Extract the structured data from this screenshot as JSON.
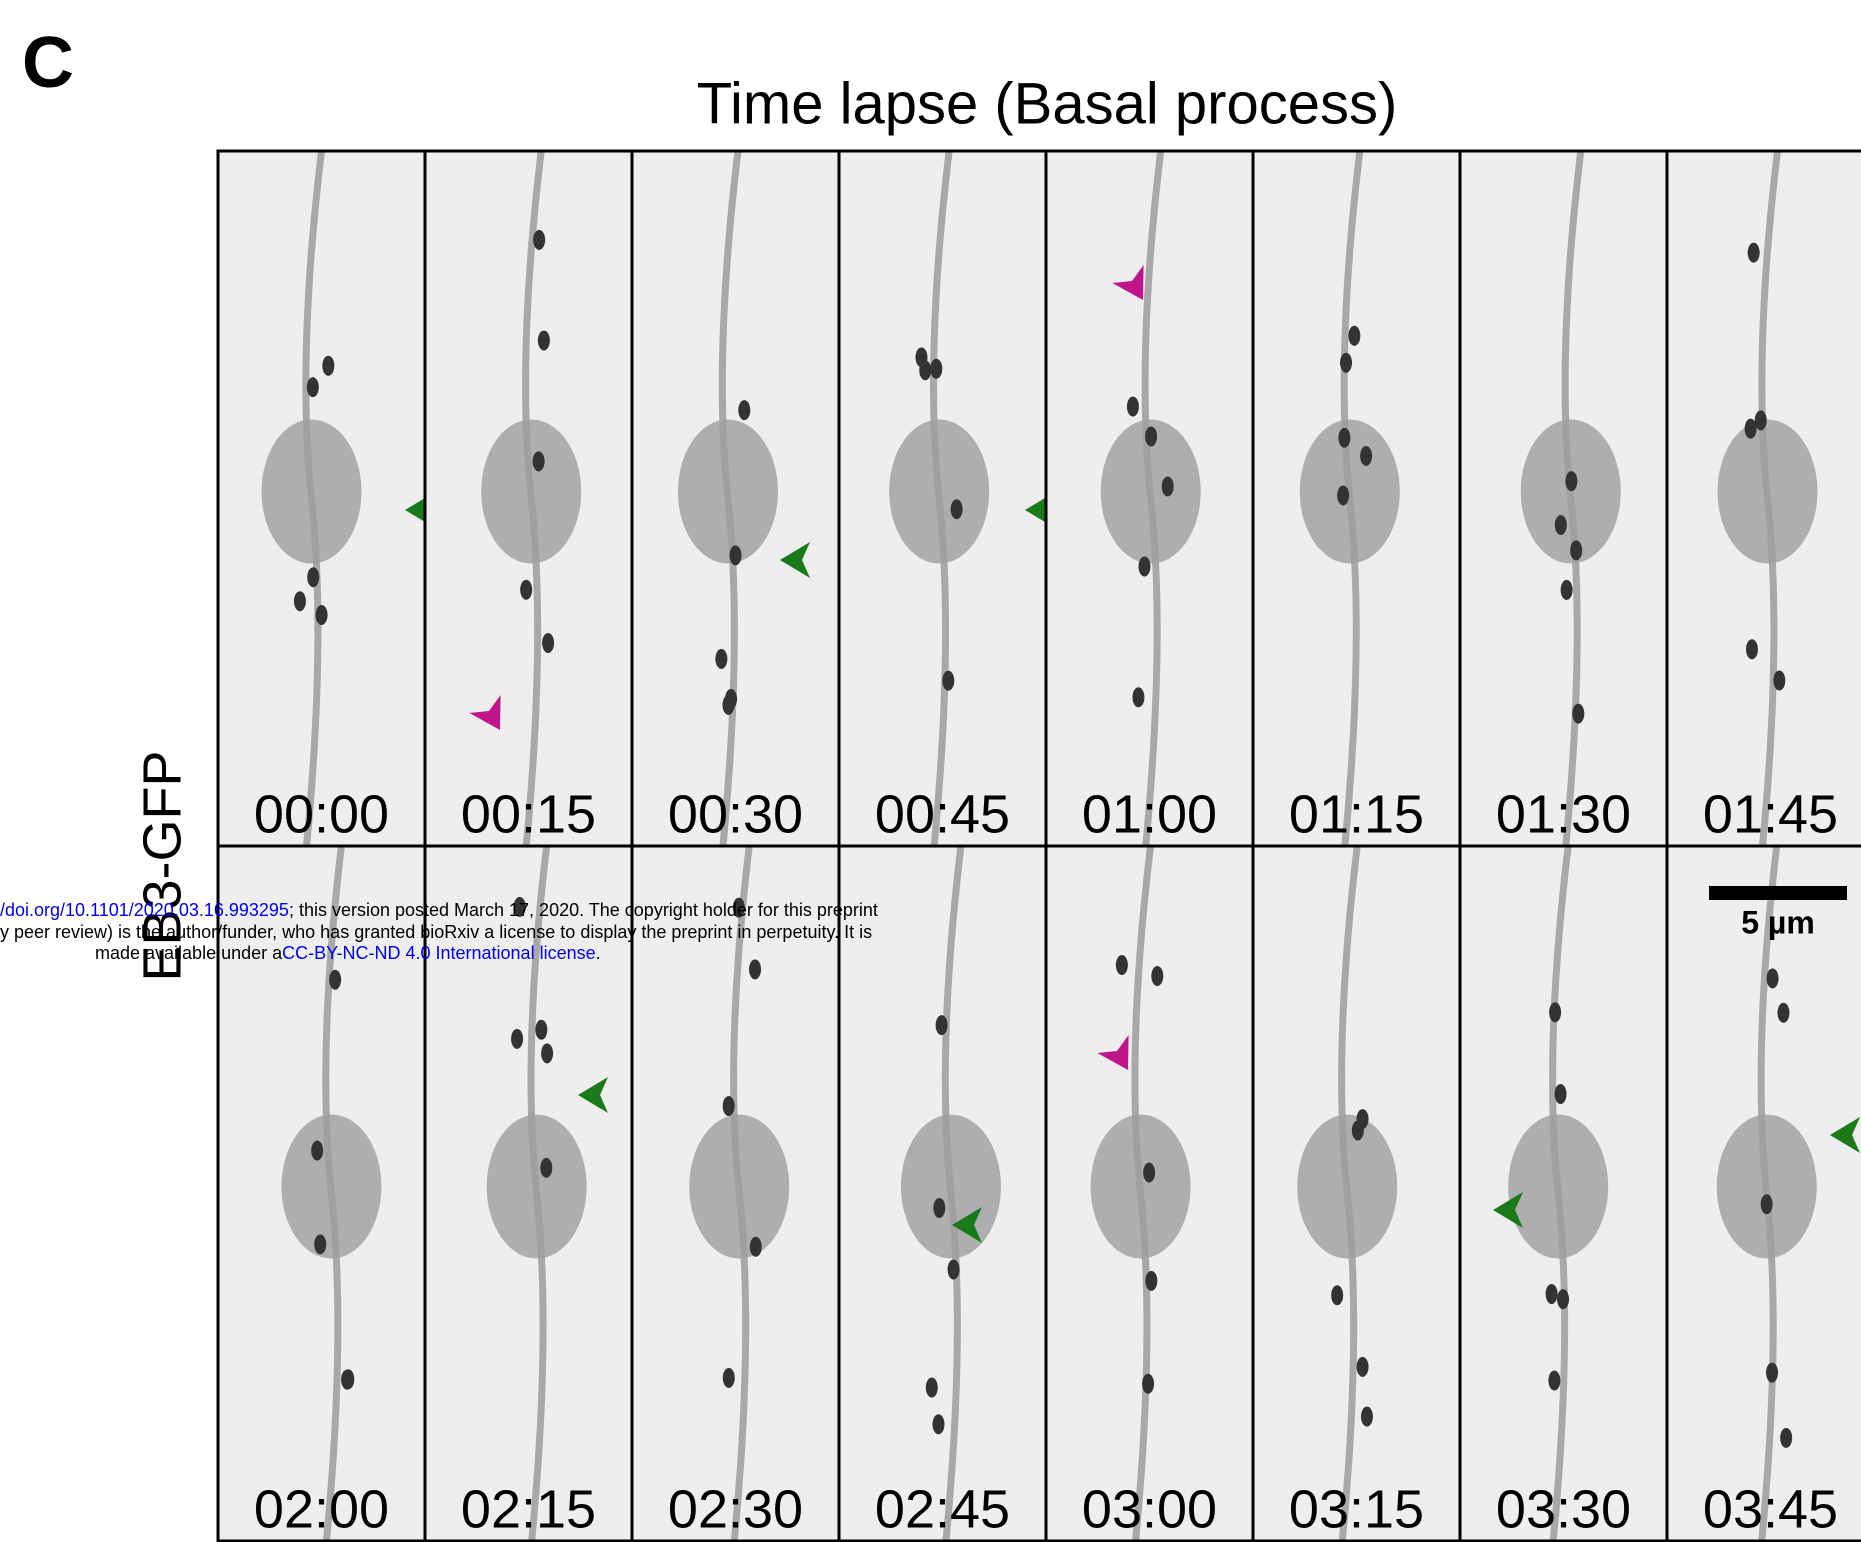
{
  "panel_label": "C",
  "title": "Time lapse (Basal process)",
  "row_label": "EB3-GFP",
  "timestamps": [
    "00:00",
    "00:15",
    "00:30",
    "00:45",
    "01:00",
    "01:15",
    "01:30",
    "01:45",
    "02:00",
    "02:15",
    "02:30",
    "02:45",
    "03:00",
    "03:15",
    "03:30",
    "03:45"
  ],
  "scale_bar": "5 µm",
  "watermark": {
    "line1": [
      "/doi.org/10.1101/2020.03.16.993295",
      "; this version posted March 17, 2020. The copyright holder for this preprint"
    ],
    "line2": [
      "y peer review) is the author/funder, who has granted bioRxiv a license to display the preprint in perpetuity. It is"
    ],
    "line3": [
      "made available under a",
      "CC-BY-NC-ND 4.0 International license",
      "."
    ]
  }
}
